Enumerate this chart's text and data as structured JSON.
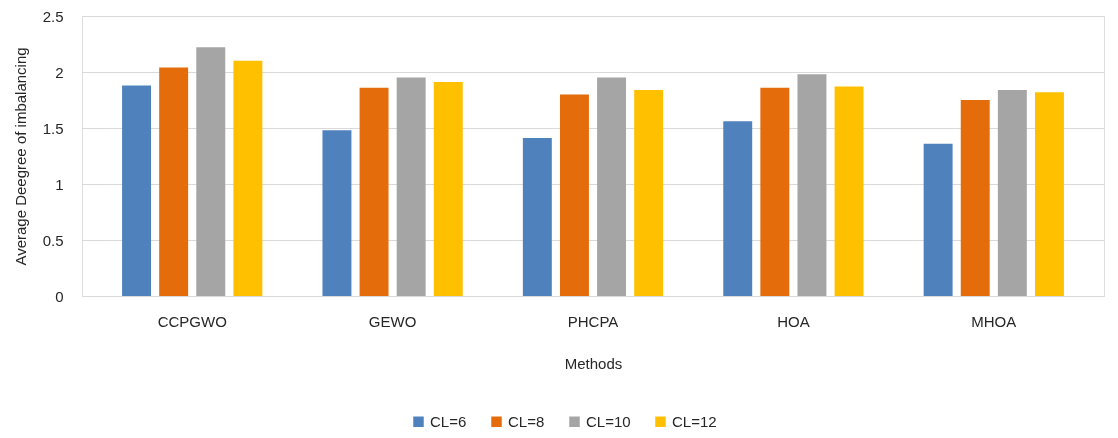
{
  "chart_data": {
    "type": "bar",
    "xlabel": "Methods",
    "ylabel": "Average Deegree of imbalancing",
    "categories": [
      "CCPGWO",
      "GEWO",
      "PHCPA",
      "HOA",
      "MHOA"
    ],
    "series": [
      {
        "name": "CL=6",
        "color": "#4f81bd",
        "values": [
          1.88,
          1.48,
          1.41,
          1.56,
          1.36
        ]
      },
      {
        "name": "CL=8",
        "color": "#e46c0a",
        "values": [
          2.04,
          1.86,
          1.8,
          1.86,
          1.75
        ]
      },
      {
        "name": "CL=10",
        "color": "#a5a5a5",
        "values": [
          2.22,
          1.95,
          1.95,
          1.98,
          1.84
        ]
      },
      {
        "name": "CL=12",
        "color": "#ffc000",
        "values": [
          2.1,
          1.91,
          1.84,
          1.87,
          1.82
        ]
      }
    ],
    "ylim": [
      0,
      2.5
    ],
    "yticks": [
      0,
      0.5,
      1,
      1.5,
      2,
      2.5
    ],
    "grid": "y",
    "legend": "bottom"
  }
}
